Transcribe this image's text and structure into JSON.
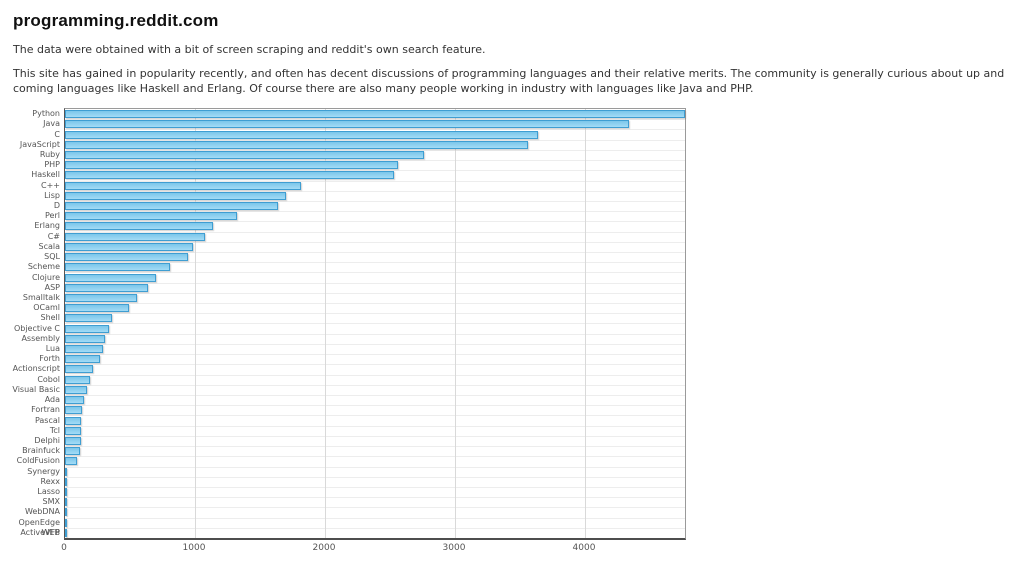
{
  "page": {
    "title": "programming.reddit.com",
    "paragraphs": [
      "The data were obtained with a bit of screen scraping and reddit's own search feature.",
      "This site has gained in popularity recently, and often has decent discussions of programming languages and their relative merits. The community is generally curious about up and coming languages like Haskell and Erlang. Of course there are also many people working in industry with languages like Java and PHP."
    ]
  },
  "chart_data": {
    "type": "bar",
    "orientation": "horizontal",
    "title": "",
    "xlabel": "",
    "ylabel": "",
    "categories": [
      "Python",
      "Java",
      "C",
      "JavaScript",
      "Ruby",
      "PHP",
      "Haskell",
      "C++",
      "Lisp",
      "D",
      "Perl",
      "Erlang",
      "C#",
      "Scala",
      "SQL",
      "Scheme",
      "Clojure",
      "ASP",
      "Smalltalk",
      "OCaml",
      "Shell",
      "Objective C",
      "Assembly",
      "Lua",
      "Forth",
      "Actionscript",
      "Cobol",
      "Visual Basic",
      "Ada",
      "Fortran",
      "Pascal",
      "Tcl",
      "Delphi",
      "Brainfuck",
      "ColdFusion",
      "Synergy",
      "Rexx",
      "Lasso",
      "SMX",
      "WebDNA",
      "OpenEdge",
      "ActiveVFP",
      "WEB"
    ],
    "values": [
      4770,
      4340,
      3640,
      3560,
      2760,
      2560,
      2530,
      1815,
      1700,
      1640,
      1325,
      1140,
      1080,
      985,
      945,
      810,
      700,
      635,
      555,
      490,
      360,
      335,
      305,
      293,
      272,
      217,
      190,
      173,
      150,
      128,
      125,
      122,
      120,
      118,
      95,
      15,
      8,
      5,
      3,
      2,
      1,
      1,
      0
    ],
    "x_ticks": [
      0,
      1000,
      2000,
      3000,
      4000
    ],
    "xlim": [
      0,
      4770
    ],
    "grid": true,
    "legend": "none",
    "bar_fill_color": "#8ed2f0",
    "bar_border_color": "#3f9ed2",
    "gridline_color": "#d9d9d9",
    "label_color": "#555555",
    "overlapping_bottom_labels": [
      "ActiveVFP",
      "WEB"
    ]
  }
}
